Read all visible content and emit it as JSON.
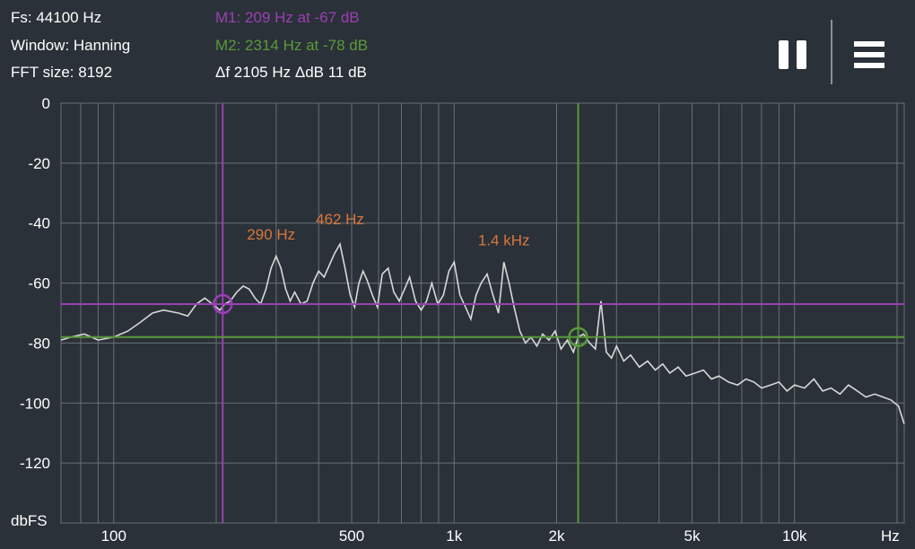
{
  "info": {
    "fs": "Fs: 44100 Hz",
    "window": "Window: Hanning",
    "fft": "FFT size: 8192"
  },
  "markers": {
    "m1": {
      "text": "M1: 209 Hz at -67 dB",
      "color": "#9b3fb5",
      "freq_hz": 209,
      "db": -67
    },
    "m2": {
      "text": "M2: 2314 Hz at -78 dB",
      "color": "#5a9a3a",
      "freq_hz": 2314,
      "db": -78
    },
    "delta": "Δf 2105 Hz ΔdB 11 dB"
  },
  "toolbar": {
    "pause_icon": "pause-icon",
    "menu_icon": "menu-icon"
  },
  "colors": {
    "background": "#2b3138",
    "grid": "#6a7078",
    "trace": "#d8d8d8",
    "peak_label": "#d9773a"
  },
  "chart_data": {
    "type": "line",
    "xscale": "log",
    "xlim": [
      70,
      21000
    ],
    "ylim": [
      -140,
      0
    ],
    "ylabel": "dbFS",
    "xunit": "Hz",
    "y_ticks": [
      "0",
      "-20",
      "-40",
      "-60",
      "-80",
      "-100",
      "-120"
    ],
    "x_ticks": [
      {
        "label": "100",
        "value": 100
      },
      {
        "label": "500",
        "value": 500
      },
      {
        "label": "1k",
        "value": 1000
      },
      {
        "label": "2k",
        "value": 2000
      },
      {
        "label": "5k",
        "value": 5000
      },
      {
        "label": "10k",
        "value": 10000
      }
    ],
    "peak_labels": [
      {
        "text": "290 Hz",
        "freq": 290,
        "db": -52
      },
      {
        "text": "462 Hz",
        "freq": 462,
        "db": -47
      },
      {
        "text": "1.4  kHz",
        "freq": 1400,
        "db": -54
      }
    ],
    "series": [
      {
        "x": [
          70,
          75,
          82,
          90,
          100,
          110,
          120,
          130,
          140,
          155,
          165,
          175,
          185,
          195,
          205,
          212,
          220,
          230,
          240,
          250,
          260,
          270,
          280,
          290,
          300,
          310,
          320,
          330,
          340,
          355,
          370,
          385,
          400,
          415,
          430,
          446,
          462,
          478,
          495,
          510,
          525,
          540,
          555,
          575,
          595,
          615,
          640,
          665,
          690,
          715,
          740,
          770,
          800,
          830,
          860,
          895,
          930,
          965,
          1000,
          1040,
          1080,
          1120,
          1160,
          1200,
          1250,
          1300,
          1350,
          1400,
          1450,
          1500,
          1560,
          1620,
          1680,
          1750,
          1820,
          1900,
          1980,
          2060,
          2150,
          2240,
          2314,
          2400,
          2500,
          2600,
          2700,
          2800,
          2900,
          3000,
          3150,
          3300,
          3500,
          3700,
          3900,
          4100,
          4300,
          4550,
          4800,
          5100,
          5400,
          5700,
          6000,
          6400,
          6800,
          7200,
          7600,
          8000,
          8500,
          9000,
          9500,
          10000,
          10700,
          11400,
          12100,
          12800,
          13600,
          14400,
          15300,
          16200,
          17200,
          18200,
          19200,
          20200,
          21000
        ],
        "y": [
          -79,
          -78,
          -77,
          -79,
          -78,
          -76,
          -73,
          -70,
          -69,
          -70,
          -71,
          -67,
          -65,
          -67,
          -69,
          -67,
          -66,
          -63,
          -61,
          -62,
          -65,
          -67,
          -62,
          -55,
          -51,
          -55,
          -62,
          -66,
          -63,
          -67,
          -66,
          -60,
          -56,
          -58,
          -54,
          -50,
          -47,
          -55,
          -64,
          -68,
          -60,
          -56,
          -59,
          -64,
          -68,
          -57,
          -55,
          -63,
          -66,
          -62,
          -58,
          -66,
          -69,
          -66,
          -60,
          -67,
          -64,
          -56,
          -53,
          -64,
          -68,
          -72,
          -64,
          -60,
          -57,
          -64,
          -70,
          -53,
          -60,
          -68,
          -76,
          -80,
          -78,
          -81,
          -77,
          -79,
          -76,
          -82,
          -79,
          -83,
          -78,
          -77,
          -80,
          -82,
          -66,
          -83,
          -85,
          -81,
          -86,
          -84,
          -88,
          -86,
          -89,
          -87,
          -90,
          -88,
          -91,
          -90,
          -89,
          -92,
          -91,
          -93,
          -94,
          -92,
          -93,
          -95,
          -94,
          -93,
          -96,
          -94,
          -95,
          -92,
          -96,
          -95,
          -97,
          -94,
          -96,
          -98,
          -97,
          -98,
          -99,
          -101,
          -107
        ]
      }
    ]
  }
}
